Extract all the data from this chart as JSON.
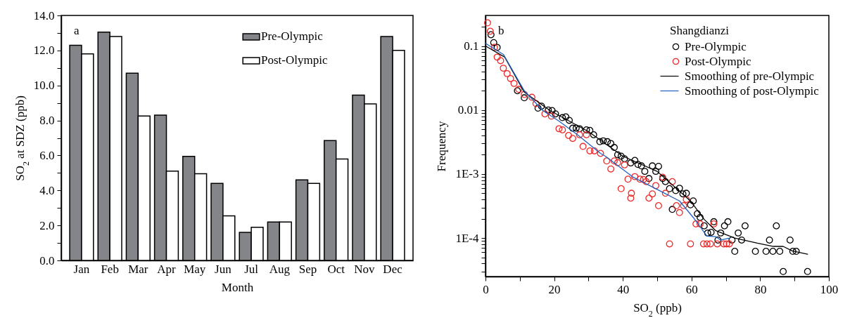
{
  "chart_data": [
    {
      "type": "bar",
      "xlabel": "Month",
      "ylabel": "SO$_{2}$ at SDZ (ppb)",
      "annotations": [
        "a"
      ],
      "categories": [
        "Jan",
        "Feb",
        "Mar",
        "Apr",
        "May",
        "Jun",
        "Jul",
        "Aug",
        "Sep",
        "Oct",
        "Nov",
        "Dec"
      ],
      "series": [
        {
          "name": "Pre-Olympic",
          "color": "#848589",
          "values": [
            12.3,
            13.05,
            10.7,
            8.3,
            5.95,
            4.4,
            1.6,
            2.2,
            4.6,
            6.85,
            9.45,
            12.8
          ]
        },
        {
          "name": "Post-Olympic",
          "color": "#ffffff",
          "values": [
            11.8,
            12.8,
            8.25,
            5.1,
            4.95,
            2.55,
            1.9,
            2.2,
            4.4,
            5.8,
            8.95,
            12.0
          ]
        }
      ],
      "ylim": [
        0,
        14
      ],
      "yticks": [
        {
          "value": 0,
          "label": "0.0"
        },
        {
          "value": 1,
          "label": null
        },
        {
          "value": 2,
          "label": "2.0"
        },
        {
          "value": 3,
          "label": null
        },
        {
          "value": 4,
          "label": "4.0"
        },
        {
          "value": 5,
          "label": null
        },
        {
          "value": 6,
          "label": "6.0"
        },
        {
          "value": 7,
          "label": null
        },
        {
          "value": 8,
          "label": "8.0"
        },
        {
          "value": 9,
          "label": null
        },
        {
          "value": 10,
          "label": "10.0"
        },
        {
          "value": 11,
          "label": null
        },
        {
          "value": 12,
          "label": "12.0"
        },
        {
          "value": 13,
          "label": null
        },
        {
          "value": 14,
          "label": "14.0"
        }
      ],
      "legend": "top right"
    },
    {
      "type": "scatter",
      "xlabel": "SO$_{2}$ (ppb)",
      "ylabel": "Frequency",
      "legend_title": "Shangdianzi",
      "annotations": [
        "b"
      ],
      "log": "y",
      "marker": "circle",
      "line_style": "solid",
      "legend": "top right",
      "xlim": [
        0,
        100
      ],
      "xticks": [
        0,
        {
          "value": 10,
          "label": null
        },
        20,
        {
          "value": 30,
          "label": null
        },
        40,
        {
          "value": 50,
          "label": null
        },
        60,
        {
          "value": 70,
          "label": null
        },
        80,
        {
          "value": 90,
          "label": null
        },
        100
      ],
      "ylim": [
        2.5e-05,
        0.3
      ],
      "yticks": [
        {
          "value": 3e-05,
          "label": null
        },
        {
          "value": 4e-05,
          "label": null
        },
        {
          "value": 5e-05,
          "label": null
        },
        {
          "value": 6e-05,
          "label": null
        },
        {
          "value": 7e-05,
          "label": null
        },
        {
          "value": 8e-05,
          "label": null
        },
        {
          "value": 9e-05,
          "label": null
        },
        {
          "value": 0.0001,
          "label": "1E-4"
        },
        {
          "value": 0.0002,
          "label": null
        },
        {
          "value": 0.0003,
          "label": null
        },
        {
          "value": 0.0004,
          "label": null
        },
        {
          "value": 0.0005,
          "label": null
        },
        {
          "value": 0.0006,
          "label": null
        },
        {
          "value": 0.0007,
          "label": null
        },
        {
          "value": 0.0008,
          "label": null
        },
        {
          "value": 0.0009,
          "label": null
        },
        {
          "value": 0.001,
          "label": "1E-3"
        },
        {
          "value": 0.002,
          "label": null
        },
        {
          "value": 0.003,
          "label": null
        },
        {
          "value": 0.004,
          "label": null
        },
        {
          "value": 0.005,
          "label": null
        },
        {
          "value": 0.006,
          "label": null
        },
        {
          "value": 0.007,
          "label": null
        },
        {
          "value": 0.008,
          "label": null
        },
        {
          "value": 0.009,
          "label": null
        },
        0.01,
        {
          "value": 0.02,
          "label": null
        },
        {
          "value": 0.03,
          "label": null
        },
        {
          "value": 0.04,
          "label": null
        },
        {
          "value": 0.05,
          "label": null
        },
        {
          "value": 0.06,
          "label": null
        },
        {
          "value": 0.07,
          "label": null
        },
        {
          "value": 0.08,
          "label": null
        },
        {
          "value": 0.09,
          "label": null
        },
        0.1,
        {
          "value": 0.2,
          "label": null
        }
      ],
      "series": [
        {
          "name": "Pre-Olympic",
          "type": "scatter",
          "color": "#000000",
          "x": [
            1.6,
            2.4,
            3.4,
            9.3,
            11.3,
            15.3,
            16.3,
            18.3,
            19.4,
            20.4,
            22.4,
            23.4,
            24.4,
            25.4,
            26.4,
            27.4,
            29.4,
            30.4,
            31.5,
            33.3,
            34.3,
            35.5,
            36.5,
            37.5,
            38.5,
            39.5,
            40.5,
            42.3,
            43.5,
            44.4,
            45.4,
            46.4,
            47.6,
            48.6,
            49.6,
            50.4,
            51.6,
            52.4,
            53.6,
            54.4,
            55.4,
            56.5,
            57.5,
            58.5,
            59.7,
            60.5,
            61.7,
            62.5,
            63.7,
            64.7,
            65.7,
            66.5,
            67.7,
            68.5,
            69.6,
            70.6,
            71.8,
            72.6,
            73.6,
            74.6,
            75.6,
            78.6,
            81.7,
            82.7,
            83.7,
            84.7,
            85.7,
            86.7,
            88.7,
            89.5,
            90.5,
            93.8
          ],
          "values": [
            0.15,
            0.113,
            0.095,
            0.02,
            0.0155,
            0.0107,
            0.0115,
            0.01,
            0.0098,
            0.0087,
            0.0076,
            0.0078,
            0.0069,
            0.0052,
            0.0052,
            0.0051,
            0.0049,
            0.0048,
            0.0041,
            0.0032,
            0.0033,
            0.0032,
            0.003,
            0.0026,
            0.002,
            0.0019,
            0.00173,
            0.00149,
            0.00163,
            0.00141,
            0.00134,
            0.0011,
            0.00085,
            0.00134,
            0.0011,
            0.00132,
            0.00085,
            0.00076,
            0.00059,
            0.00028,
            0.00055,
            0.0006,
            0.00049,
            0.0005,
            0.00033,
            0.00038,
            0.00024,
            0.00021,
            0.000155,
            0.00012,
            0.000123,
            0.00018,
            9.3e-05,
            0.00012,
            0.000155,
            0.00018,
            9.3e-05,
            6.2e-05,
            0.00012,
            9.3e-05,
            0.000155,
            6.2e-05,
            6.2e-05,
            9.3e-05,
            6.2e-05,
            0.000155,
            6.2e-05,
            3e-05,
            9.3e-05,
            6.2e-05,
            6.2e-05,
            3e-05
          ]
        },
        {
          "name": "Post-Olympic",
          "type": "scatter",
          "color": "#ee2b2b",
          "x": [
            0.6,
            1.4,
            2.6,
            3.4,
            4.4,
            5.2,
            6.3,
            7.3,
            8.3,
            9.7,
            11.3,
            13.5,
            14.7,
            17.3,
            19.2,
            21.4,
            22.4,
            24.2,
            25.4,
            27.4,
            28.4,
            29.4,
            30.4,
            31.7,
            33.5,
            35.3,
            36.5,
            37.5,
            38.5,
            39.5,
            40.5,
            41.5,
            42.5,
            42.3,
            43.5,
            45.0,
            46.0,
            46.8,
            47.6,
            48.6,
            49.6,
            50.4,
            51.6,
            52.4,
            53.6,
            54.4,
            55.6,
            56.5,
            57.7,
            58.5,
            59.7,
            61.3,
            62.5,
            63.5,
            64.5,
            65.5,
            66.5,
            67.5,
            69.4,
            70.2,
            71.0
          ],
          "values": [
            0.23,
            0.17,
            0.095,
            0.067,
            0.059,
            0.045,
            0.037,
            0.031,
            0.026,
            0.021,
            0.0175,
            0.0158,
            0.0126,
            0.0087,
            0.008,
            0.0051,
            0.0049,
            0.004,
            0.0036,
            0.0041,
            0.0027,
            0.0041,
            0.0023,
            0.0023,
            0.0021,
            0.0016,
            0.0012,
            0.0016,
            0.0015,
            0.00059,
            0.00139,
            0.00083,
            0.0005,
            0.00042,
            0.00091,
            0.00083,
            0.00082,
            0.00076,
            0.00042,
            0.00049,
            0.00066,
            0.00032,
            0.00089,
            0.0005,
            8.1e-05,
            0.00076,
            0.00032,
            0.00025,
            0.00032,
            0.0004,
            8.1e-05,
            0.000166,
            0.000166,
            8.1e-05,
            8.1e-05,
            8.1e-05,
            0.000166,
            8.1e-05,
            8.1e-05,
            8.1e-05,
            8.1e-05
          ]
        },
        {
          "name": "Smoothing of pre-Olympic",
          "type": "line",
          "marker": "none",
          "color": "#000000",
          "x": [
            0,
            5.6,
            11.3,
            18.8,
            30,
            40,
            50,
            59.7,
            63.7,
            67.1,
            72.6,
            79.2,
            83.9,
            86.7,
            89.3,
            93.8
          ],
          "values": [
            0.1,
            0.067,
            0.019,
            0.0098,
            0.0046,
            0.0019,
            0.0011,
            0.00038,
            0.000195,
            0.00013,
            0.0001,
            8.3e-05,
            7.4e-05,
            7.4e-05,
            6.3e-05,
            5.6e-05
          ]
        },
        {
          "name": "Smoothing of post-Olympic",
          "type": "line",
          "marker": "none",
          "color": "#2060c0",
          "x": [
            0,
            5.2,
            11.3,
            16.7,
            21.4,
            26.8,
            33.5,
            34.9,
            42.9,
            51,
            56.5,
            60.5,
            64.5,
            67.1,
            68.5,
            71.2
          ],
          "values": [
            0.11,
            0.074,
            0.02,
            0.0098,
            0.0067,
            0.0041,
            0.0021,
            0.0019,
            0.0009,
            0.00054,
            0.00038,
            0.00021,
            0.000107,
            0.000105,
            9.3e-05,
            0.0001
          ]
        }
      ]
    }
  ]
}
